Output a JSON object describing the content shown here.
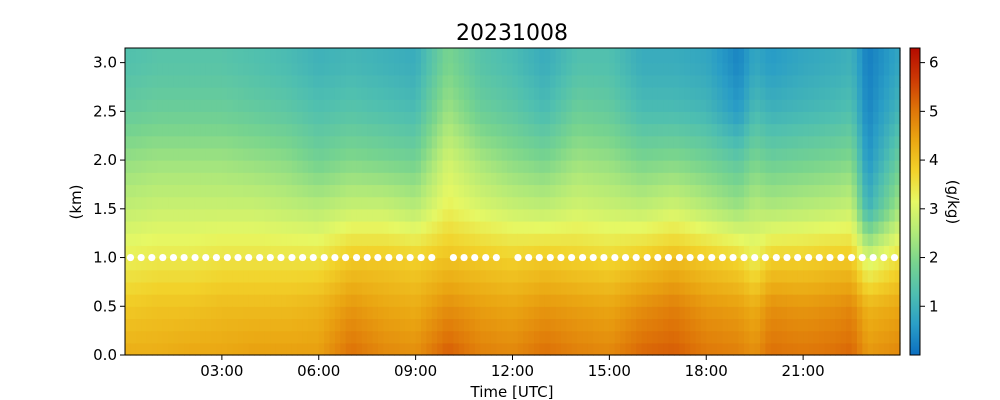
{
  "chart_data": {
    "type": "heatmap",
    "title": "20231008",
    "xlabel": "Time [UTC]",
    "ylabel": "(km)",
    "xlim": [
      0,
      24
    ],
    "ylim": [
      0,
      3.15
    ],
    "x_ticks": [
      {
        "value": 3,
        "label": "03:00"
      },
      {
        "value": 6,
        "label": "06:00"
      },
      {
        "value": 9,
        "label": "09:00"
      },
      {
        "value": 12,
        "label": "12:00"
      },
      {
        "value": 15,
        "label": "15:00"
      },
      {
        "value": 18,
        "label": "18:00"
      },
      {
        "value": 21,
        "label": "21:00"
      }
    ],
    "y_ticks": [
      {
        "value": 0.0,
        "label": "0.0"
      },
      {
        "value": 0.5,
        "label": "0.5"
      },
      {
        "value": 1.0,
        "label": "1.0"
      },
      {
        "value": 1.5,
        "label": "1.5"
      },
      {
        "value": 2.0,
        "label": "2.0"
      },
      {
        "value": 2.5,
        "label": "2.5"
      },
      {
        "value": 3.0,
        "label": "3.0"
      }
    ],
    "colorbar": {
      "label": "(g/kg)",
      "range": [
        0,
        6.3
      ],
      "ticks": [
        {
          "value": 1,
          "label": "1"
        },
        {
          "value": 2,
          "label": "2"
        },
        {
          "value": 3,
          "label": "3"
        },
        {
          "value": 4,
          "label": "4"
        },
        {
          "value": 5,
          "label": "5"
        },
        {
          "value": 6,
          "label": "6"
        }
      ],
      "colormap": [
        "#0c6fc0",
        "#2a9ec6",
        "#4fbfb0",
        "#78d48e",
        "#b3ea78",
        "#e6f864",
        "#f2d22a",
        "#eaa612",
        "#de7408",
        "#cc3804",
        "#b40a00"
      ]
    },
    "heights_km": [
      0.0,
      0.5,
      1.0,
      1.5,
      2.0,
      2.5,
      3.0
    ],
    "column_times_utc": [
      0.0,
      1.0,
      2.0,
      3.0,
      4.0,
      5.0,
      6.0,
      7.0,
      8.0,
      9.0,
      10.0,
      11.0,
      12.0,
      13.0,
      14.0,
      15.0,
      16.0,
      17.0,
      18.0,
      19.0,
      19.5,
      20.0,
      21.0,
      22.0,
      22.5,
      23.0,
      24.0
    ],
    "column_profiles_gkg": [
      [
        4.3,
        3.9,
        3.3,
        2.7,
        2.2,
        1.6,
        1.3
      ],
      [
        4.3,
        4.0,
        3.4,
        2.8,
        2.3,
        1.7,
        1.4
      ],
      [
        4.4,
        4.0,
        3.4,
        2.8,
        2.3,
        1.7,
        1.4
      ],
      [
        4.4,
        4.1,
        3.5,
        2.8,
        2.3,
        1.7,
        1.4
      ],
      [
        4.5,
        4.1,
        3.5,
        2.8,
        2.2,
        1.6,
        1.3
      ],
      [
        4.5,
        4.1,
        3.5,
        2.7,
        2.1,
        1.5,
        1.2
      ],
      [
        4.5,
        4.2,
        3.5,
        2.6,
        1.8,
        1.3,
        1.0
      ],
      [
        5.1,
        4.6,
        3.9,
        2.8,
        2.0,
        1.4,
        1.1
      ],
      [
        4.8,
        4.4,
        3.9,
        2.8,
        1.9,
        1.3,
        1.0
      ],
      [
        4.7,
        4.3,
        3.8,
        2.6,
        1.8,
        1.2,
        0.9
      ],
      [
        5.3,
        4.7,
        4.0,
        3.3,
        2.9,
        2.3,
        1.9
      ],
      [
        4.9,
        4.5,
        3.9,
        3.0,
        2.4,
        1.7,
        1.4
      ],
      [
        4.8,
        4.4,
        3.8,
        2.8,
        2.1,
        1.5,
        1.2
      ],
      [
        5.1,
        4.6,
        3.9,
        2.7,
        1.9,
        1.2,
        0.9
      ],
      [
        4.9,
        4.5,
        3.8,
        2.9,
        2.3,
        1.7,
        1.3
      ],
      [
        4.8,
        4.4,
        3.7,
        2.8,
        2.2,
        1.6,
        1.3
      ],
      [
        5.2,
        4.7,
        3.9,
        2.7,
        1.9,
        1.2,
        0.9
      ],
      [
        5.3,
        4.9,
        4.1,
        2.9,
        2.0,
        1.2,
        0.9
      ],
      [
        5.0,
        4.6,
        3.9,
        2.6,
        1.8,
        1.1,
        0.8
      ],
      [
        4.9,
        4.5,
        3.7,
        2.3,
        1.5,
        0.6,
        0.3
      ],
      [
        4.7,
        4.3,
        3.3,
        2.6,
        1.9,
        1.2,
        0.8
      ],
      [
        5.1,
        4.7,
        3.8,
        2.5,
        1.7,
        1.0,
        0.6
      ],
      [
        5.0,
        4.6,
        3.8,
        2.6,
        1.8,
        1.1,
        0.8
      ],
      [
        5.1,
        4.7,
        3.9,
        2.7,
        1.9,
        1.2,
        0.9
      ],
      [
        5.2,
        4.8,
        3.9,
        2.8,
        2.0,
        1.3,
        1.0
      ],
      [
        4.6,
        4.2,
        2.9,
        1.0,
        0.5,
        0.3,
        0.2
      ],
      [
        4.8,
        4.4,
        3.6,
        2.4,
        1.7,
        1.1,
        0.8
      ]
    ],
    "marker_series": {
      "height_km": 1.0,
      "marker": "white dots",
      "times_utc": [
        0.17,
        0.5,
        0.83,
        1.17,
        1.5,
        1.83,
        2.17,
        2.5,
        2.83,
        3.17,
        3.5,
        3.83,
        4.17,
        4.5,
        4.83,
        5.17,
        5.5,
        5.83,
        6.17,
        6.5,
        6.83,
        7.17,
        7.5,
        7.83,
        8.17,
        8.5,
        8.83,
        9.17,
        9.5,
        10.17,
        10.5,
        10.83,
        11.17,
        11.5,
        12.17,
        12.5,
        12.83,
        13.17,
        13.5,
        13.83,
        14.17,
        14.5,
        14.83,
        15.17,
        15.5,
        15.83,
        16.17,
        16.5,
        16.83,
        17.17,
        17.5,
        17.83,
        18.17,
        18.5,
        18.83,
        19.17,
        19.5,
        19.83,
        20.17,
        20.5,
        20.83,
        21.17,
        21.5,
        21.83,
        22.17,
        22.5,
        22.83,
        23.17,
        23.5,
        23.83
      ]
    }
  }
}
